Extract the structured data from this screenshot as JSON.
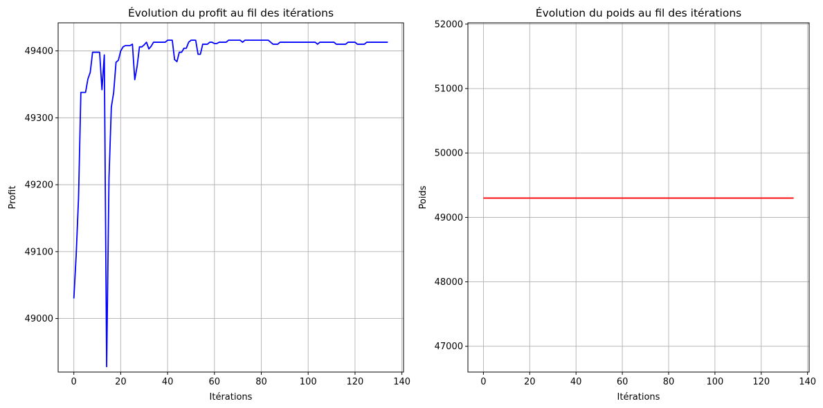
{
  "chart_data": [
    {
      "type": "line",
      "title": "Évolution du profit au fil des itérations",
      "xlabel": "Itérations",
      "ylabel": "Profit",
      "xlim": [
        -6.7,
        140.7
      ],
      "ylim": [
        48920,
        49442
      ],
      "xticks": [
        0,
        20,
        40,
        60,
        80,
        100,
        120,
        140
      ],
      "yticks": [
        49000,
        49100,
        49200,
        49300,
        49400
      ],
      "grid": true,
      "series": [
        {
          "color": "#0000ff",
          "x": [
            0,
            1,
            2,
            3,
            4,
            5,
            6,
            7,
            8,
            9,
            10,
            11,
            12,
            13,
            14,
            15,
            16,
            17,
            18,
            19,
            20,
            21,
            22,
            23,
            24,
            25,
            26,
            27,
            28,
            29,
            30,
            31,
            32,
            33,
            34,
            35,
            36,
            37,
            38,
            39,
            40,
            41,
            42,
            43,
            44,
            45,
            46,
            47,
            48,
            49,
            50,
            51,
            52,
            53,
            54,
            55,
            56,
            57,
            58,
            59,
            60,
            61,
            62,
            63,
            64,
            65,
            66,
            67,
            68,
            69,
            70,
            71,
            72,
            73,
            74,
            75,
            76,
            77,
            78,
            79,
            80,
            81,
            82,
            83,
            84,
            85,
            86,
            87,
            88,
            89,
            90,
            91,
            92,
            93,
            94,
            95,
            96,
            97,
            98,
            99,
            100,
            101,
            102,
            103,
            104,
            105,
            106,
            107,
            108,
            109,
            110,
            111,
            112,
            113,
            114,
            115,
            116,
            117,
            118,
            119,
            120,
            121,
            122,
            123,
            124,
            125,
            126,
            127,
            128,
            129,
            130,
            131,
            132,
            133,
            134
          ],
          "y": [
            49030,
            49095,
            49180,
            49338,
            49338,
            49338,
            49358,
            49368,
            49398,
            49398,
            49398,
            49398,
            49342,
            49394,
            48928,
            49210,
            49316,
            49338,
            49383,
            49386,
            49400,
            49406,
            49408,
            49408,
            49408,
            49410,
            49357,
            49377,
            49406,
            49406,
            49409,
            49413,
            49403,
            49407,
            49413,
            49413,
            49413,
            49413,
            49413,
            49413,
            49416,
            49416,
            49416,
            49387,
            49384,
            49398,
            49398,
            49404,
            49404,
            49413,
            49416,
            49416,
            49416,
            49395,
            49395,
            49410,
            49410,
            49410,
            49413,
            49413,
            49411,
            49411,
            49413,
            49413,
            49413,
            49413,
            49416,
            49416,
            49416,
            49416,
            49416,
            49416,
            49413,
            49416,
            49416,
            49416,
            49416,
            49416,
            49416,
            49416,
            49416,
            49416,
            49416,
            49416,
            49413,
            49410,
            49410,
            49410,
            49413,
            49413,
            49413,
            49413,
            49413,
            49413,
            49413,
            49413,
            49413,
            49413,
            49413,
            49413,
            49413,
            49413,
            49413,
            49413,
            49410,
            49413,
            49413,
            49413,
            49413,
            49413,
            49413,
            49413,
            49410,
            49410,
            49410,
            49410,
            49410,
            49413,
            49413,
            49413,
            49413,
            49410,
            49410,
            49410,
            49410,
            49413,
            49413,
            49413,
            49413,
            49413,
            49413,
            49413,
            49413,
            49413,
            49413
          ]
        }
      ]
    },
    {
      "type": "line",
      "title": "Évolution du poids au fil des itérations",
      "xlabel": "Itérations",
      "ylabel": "Poids",
      "xlim": [
        -6.7,
        140.7
      ],
      "ylim": [
        46600,
        52020
      ],
      "xticks": [
        0,
        20,
        40,
        60,
        80,
        100,
        120,
        140
      ],
      "yticks": [
        47000,
        48000,
        49000,
        50000,
        51000,
        52000
      ],
      "grid": true,
      "series": [
        {
          "color": "#ff0000",
          "x": [
            0,
            134
          ],
          "y": [
            49300,
            49300
          ]
        }
      ]
    }
  ]
}
